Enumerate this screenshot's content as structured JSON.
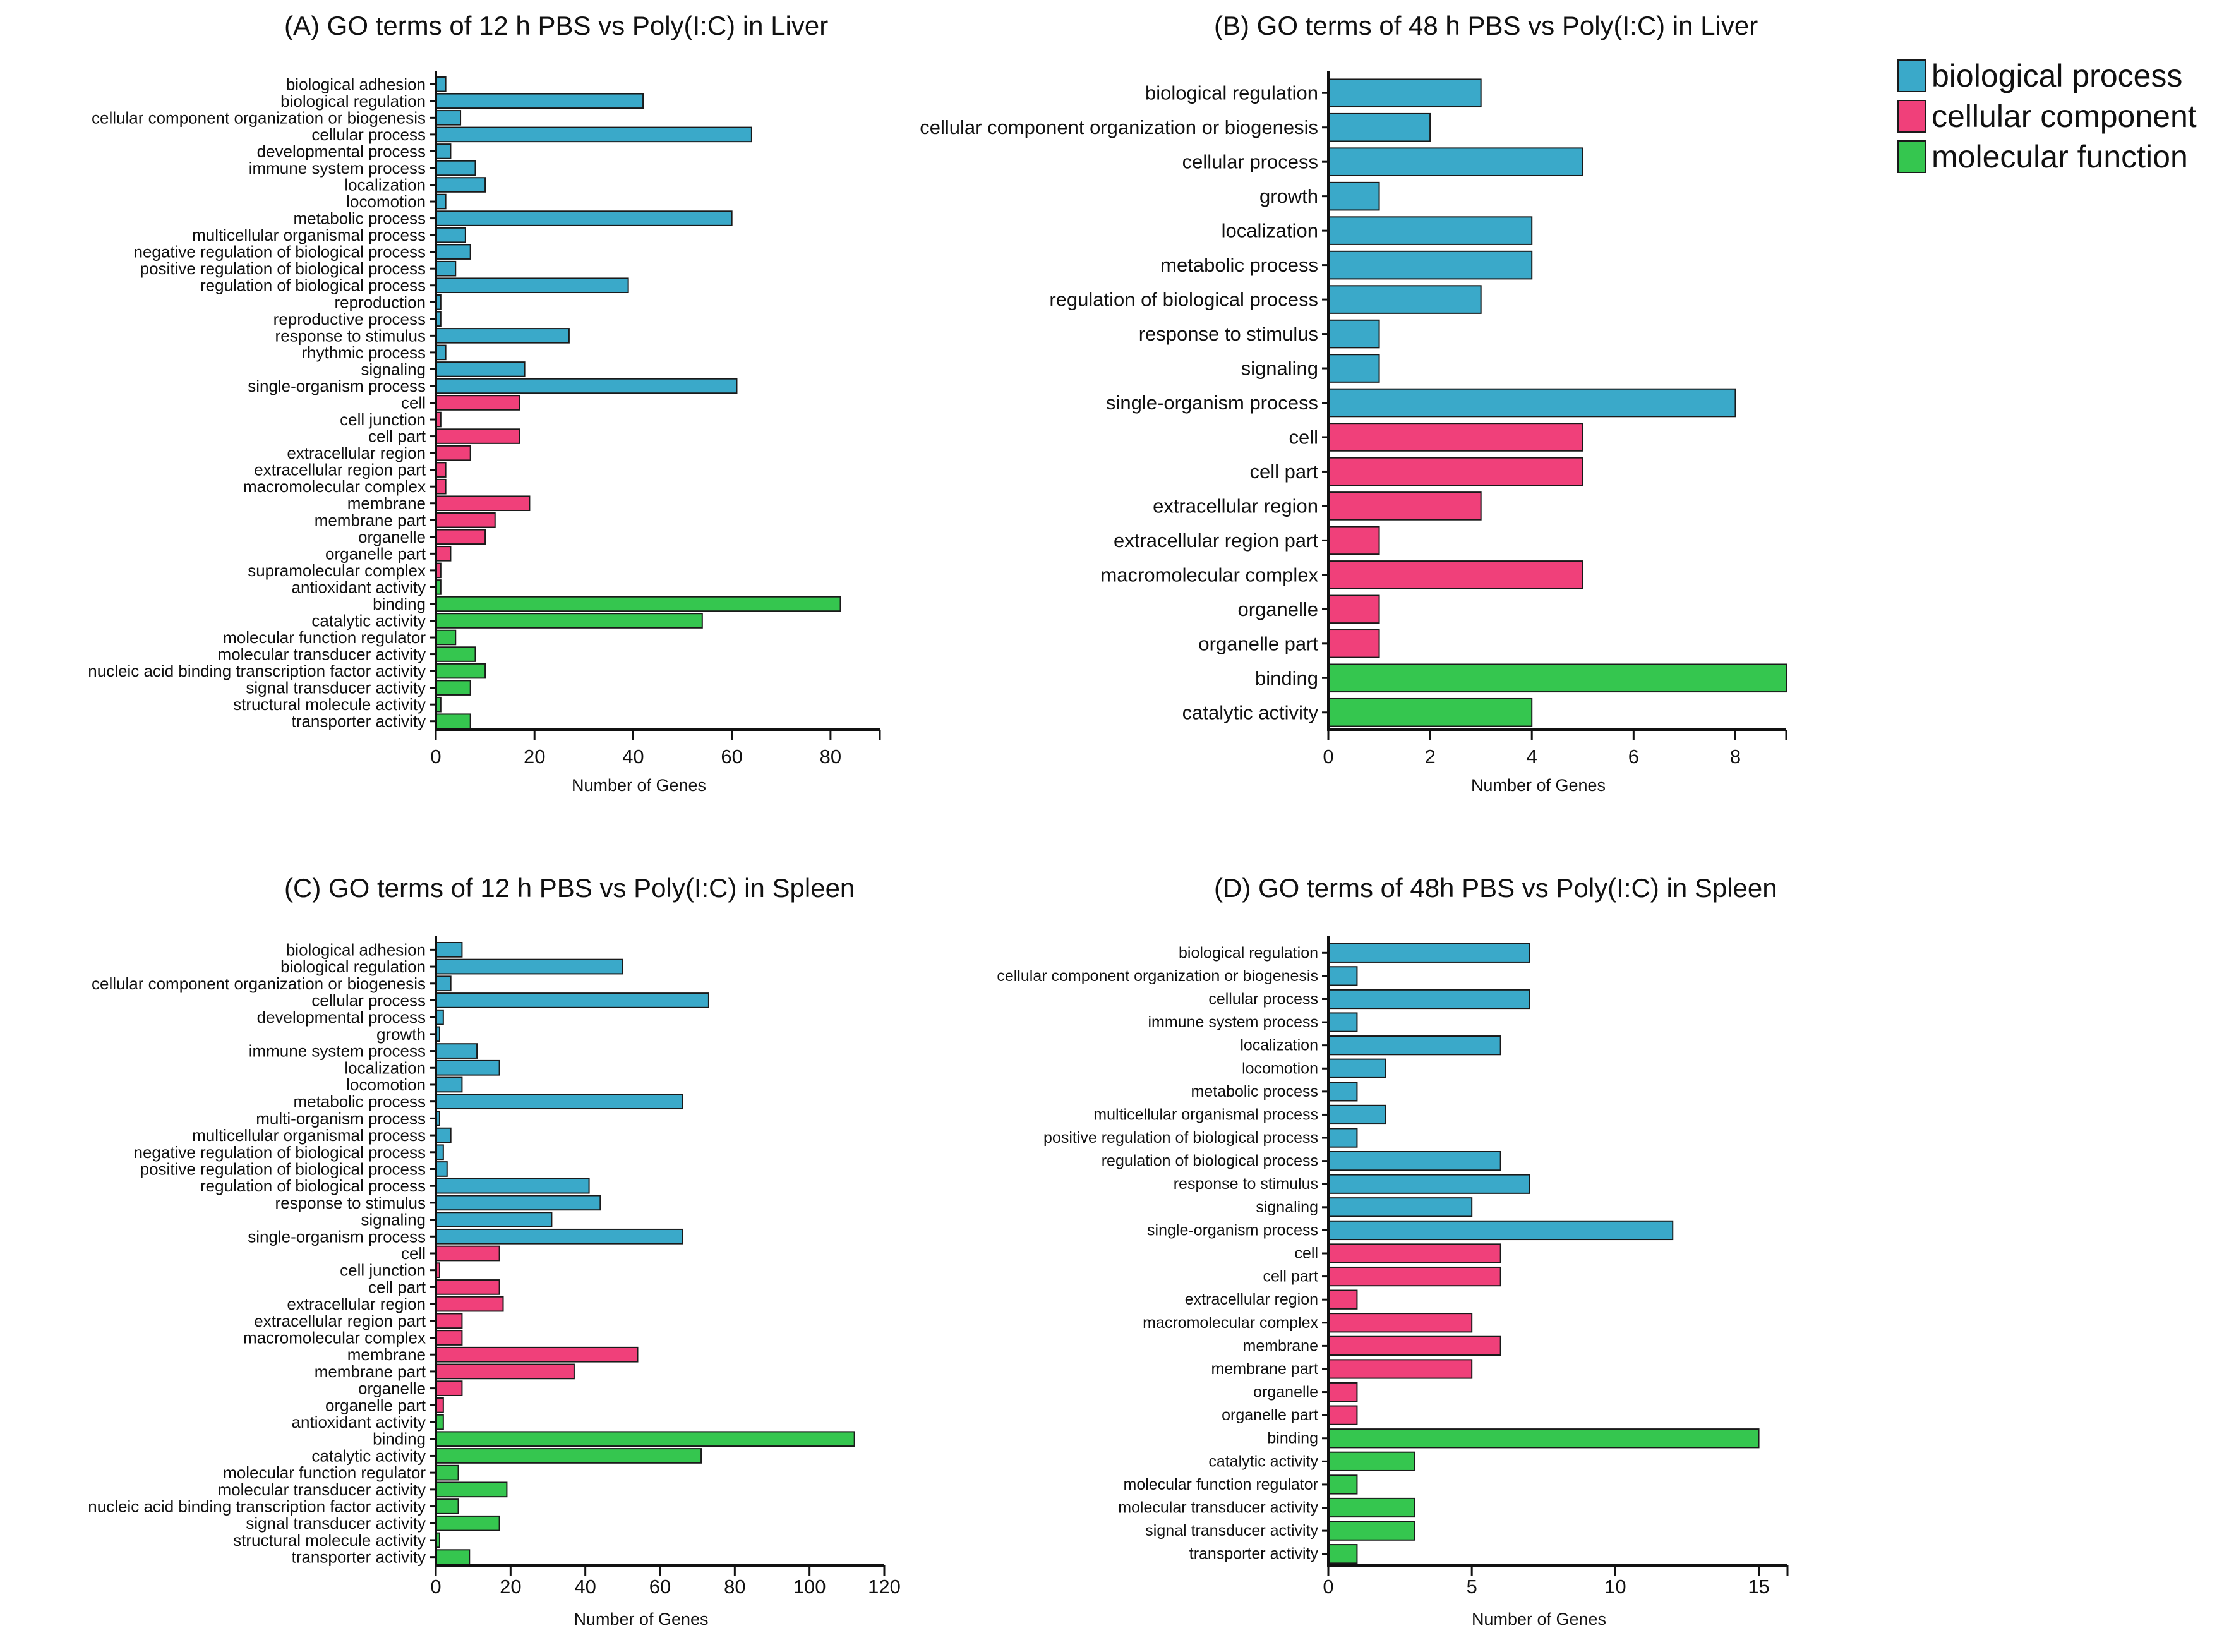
{
  "colors": {
    "biological_process": "#3aa9c9",
    "cellular_component": "#f0407a",
    "molecular_function": "#35c64f"
  },
  "legend": [
    {
      "key": "biological_process",
      "label": "biological process"
    },
    {
      "key": "cellular_component",
      "label": "cellular component"
    },
    {
      "key": "molecular_function",
      "label": "molecular function"
    }
  ],
  "chart_data": [
    {
      "type": "bar",
      "orientation": "horizontal",
      "title": "(A)  GO terms of 12 h PBS vs Poly(I:C) in Liver",
      "xlabel": "Number of Genes",
      "xlim": [
        0,
        90
      ],
      "xticks": [
        0,
        20,
        40,
        60,
        80
      ],
      "categories": [
        "biological adhesion",
        "biological regulation",
        "cellular component organization or biogenesis",
        "cellular process",
        "developmental process",
        "immune system process",
        "localization",
        "locomotion",
        "metabolic process",
        "multicellular organismal process",
        "negative regulation of biological process",
        "positive regulation of biological process",
        "regulation of biological process",
        "reproduction",
        "reproductive process",
        "response to stimulus",
        "rhythmic process",
        "signaling",
        "single-organism process",
        "cell",
        "cell junction",
        "cell part",
        "extracellular region",
        "extracellular region part",
        "macromolecular complex",
        "membrane",
        "membrane part",
        "organelle",
        "organelle part",
        "supramolecular complex",
        "antioxidant activity",
        "binding",
        "catalytic activity",
        "molecular function regulator",
        "molecular transducer activity",
        "nucleic acid binding transcription factor activity",
        "signal transducer activity",
        "structural molecule activity",
        "transporter activity"
      ],
      "values": [
        2,
        42,
        5,
        64,
        3,
        8,
        10,
        2,
        60,
        6,
        7,
        4,
        39,
        1,
        1,
        27,
        2,
        18,
        61,
        17,
        1,
        17,
        7,
        2,
        2,
        19,
        12,
        10,
        3,
        1,
        1,
        82,
        54,
        4,
        8,
        10,
        7,
        1,
        7
      ],
      "groups": [
        "biological_process",
        "biological_process",
        "biological_process",
        "biological_process",
        "biological_process",
        "biological_process",
        "biological_process",
        "biological_process",
        "biological_process",
        "biological_process",
        "biological_process",
        "biological_process",
        "biological_process",
        "biological_process",
        "biological_process",
        "biological_process",
        "biological_process",
        "biological_process",
        "biological_process",
        "cellular_component",
        "cellular_component",
        "cellular_component",
        "cellular_component",
        "cellular_component",
        "cellular_component",
        "cellular_component",
        "cellular_component",
        "cellular_component",
        "cellular_component",
        "cellular_component",
        "molecular_function",
        "molecular_function",
        "molecular_function",
        "molecular_function",
        "molecular_function",
        "molecular_function",
        "molecular_function",
        "molecular_function",
        "molecular_function"
      ]
    },
    {
      "type": "bar",
      "orientation": "horizontal",
      "title": "(B)  GO terms of 48 h PBS vs Poly(I:C) in Liver",
      "xlabel": "Number of Genes",
      "xlim": [
        0,
        9
      ],
      "xticks": [
        0,
        2,
        4,
        6,
        8
      ],
      "categories": [
        "biological regulation",
        "cellular component organization or biogenesis",
        "cellular process",
        "growth",
        "localization",
        "metabolic process",
        "regulation of biological process",
        "response to stimulus",
        "signaling",
        "single-organism process",
        "cell",
        "cell part",
        "extracellular region",
        "extracellular region part",
        "macromolecular complex",
        "organelle",
        "organelle part",
        "binding",
        "catalytic activity"
      ],
      "values": [
        3,
        2,
        5,
        1,
        4,
        4,
        3,
        1,
        1,
        8,
        5,
        5,
        3,
        1,
        5,
        1,
        1,
        9,
        4
      ],
      "groups": [
        "biological_process",
        "biological_process",
        "biological_process",
        "biological_process",
        "biological_process",
        "biological_process",
        "biological_process",
        "biological_process",
        "biological_process",
        "biological_process",
        "cellular_component",
        "cellular_component",
        "cellular_component",
        "cellular_component",
        "cellular_component",
        "cellular_component",
        "cellular_component",
        "molecular_function",
        "molecular_function"
      ]
    },
    {
      "type": "bar",
      "orientation": "horizontal",
      "title": "(C)  GO terms of 12 h PBS vs Poly(I:C) in Spleen",
      "xlabel": "Number of Genes",
      "xlim": [
        0,
        120
      ],
      "xticks": [
        0,
        20,
        40,
        60,
        80,
        100,
        120
      ],
      "categories": [
        "biological adhesion",
        "biological regulation",
        "cellular component organization or biogenesis",
        "cellular process",
        "developmental process",
        "growth",
        "immune system process",
        "localization",
        "locomotion",
        "metabolic process",
        "multi-organism process",
        "multicellular organismal process",
        "negative regulation of biological process",
        "positive regulation of biological process",
        "regulation of biological process",
        "response to stimulus",
        "signaling",
        "single-organism process",
        "cell",
        "cell junction",
        "cell part",
        "extracellular region",
        "extracellular region part",
        "macromolecular complex",
        "membrane",
        "membrane part",
        "organelle",
        "organelle part",
        "antioxidant activity",
        "binding",
        "catalytic activity",
        "molecular function regulator",
        "molecular transducer activity",
        "nucleic acid binding transcription factor activity",
        "signal transducer activity",
        "structural molecule activity",
        "transporter activity"
      ],
      "values": [
        7,
        50,
        4,
        73,
        2,
        1,
        11,
        17,
        7,
        66,
        1,
        4,
        2,
        3,
        41,
        44,
        31,
        66,
        17,
        1,
        17,
        18,
        7,
        7,
        54,
        37,
        7,
        2,
        2,
        112,
        71,
        6,
        19,
        6,
        17,
        1,
        9
      ],
      "groups": [
        "biological_process",
        "biological_process",
        "biological_process",
        "biological_process",
        "biological_process",
        "biological_process",
        "biological_process",
        "biological_process",
        "biological_process",
        "biological_process",
        "biological_process",
        "biological_process",
        "biological_process",
        "biological_process",
        "biological_process",
        "biological_process",
        "biological_process",
        "biological_process",
        "cellular_component",
        "cellular_component",
        "cellular_component",
        "cellular_component",
        "cellular_component",
        "cellular_component",
        "cellular_component",
        "cellular_component",
        "cellular_component",
        "cellular_component",
        "molecular_function",
        "molecular_function",
        "molecular_function",
        "molecular_function",
        "molecular_function",
        "molecular_function",
        "molecular_function",
        "molecular_function",
        "molecular_function"
      ]
    },
    {
      "type": "bar",
      "orientation": "horizontal",
      "title": "(D)  GO terms of 48h PBS vs Poly(I:C) in Spleen",
      "xlabel": "Number of Genes",
      "xlim": [
        0,
        16
      ],
      "xticks": [
        0,
        5,
        10,
        15
      ],
      "categories": [
        "biological regulation",
        "cellular component organization or biogenesis",
        "cellular process",
        "immune system process",
        "localization",
        "locomotion",
        "metabolic process",
        "multicellular organismal process",
        "positive regulation of biological process",
        "regulation of biological process",
        "response to stimulus",
        "signaling",
        "single-organism process",
        "cell",
        "cell part",
        "extracellular region",
        "macromolecular complex",
        "membrane",
        "membrane part",
        "organelle",
        "organelle part",
        "binding",
        "catalytic activity",
        "molecular function regulator",
        "molecular transducer activity",
        "signal transducer activity",
        "transporter activity"
      ],
      "values": [
        7,
        1,
        7,
        1,
        6,
        2,
        1,
        2,
        1,
        6,
        7,
        5,
        12,
        6,
        6,
        1,
        5,
        6,
        5,
        1,
        1,
        15,
        3,
        1,
        3,
        3,
        1
      ],
      "groups": [
        "biological_process",
        "biological_process",
        "biological_process",
        "biological_process",
        "biological_process",
        "biological_process",
        "biological_process",
        "biological_process",
        "biological_process",
        "biological_process",
        "biological_process",
        "biological_process",
        "biological_process",
        "cellular_component",
        "cellular_component",
        "cellular_component",
        "cellular_component",
        "cellular_component",
        "cellular_component",
        "cellular_component",
        "cellular_component",
        "molecular_function",
        "molecular_function",
        "molecular_function",
        "molecular_function",
        "molecular_function",
        "molecular_function"
      ]
    }
  ]
}
